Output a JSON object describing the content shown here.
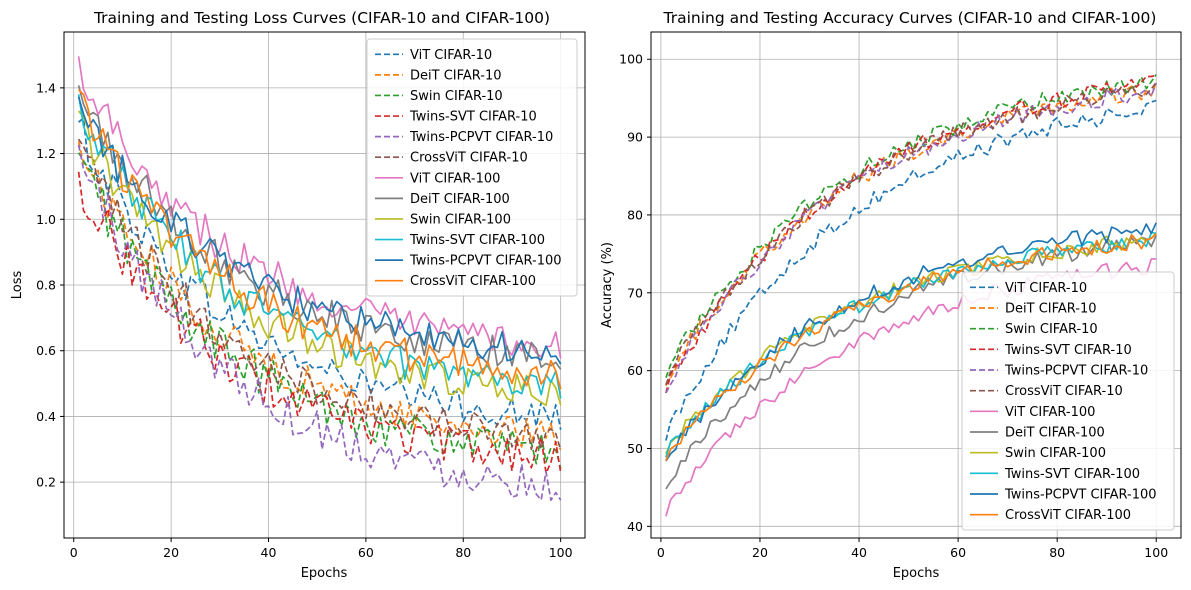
{
  "chart_data": [
    {
      "type": "line",
      "title": "Training and Testing Loss Curves (CIFAR-10 and CIFAR-100)",
      "xlabel": "Epochs",
      "ylabel": "Loss",
      "xlim": [
        -2,
        105
      ],
      "ylim": [
        0.03,
        1.57
      ],
      "xticks": [
        0,
        20,
        40,
        60,
        80,
        100
      ],
      "yticks": [
        0.2,
        0.4,
        0.6,
        0.8,
        1.0,
        1.2,
        1.4
      ],
      "xtick_labels": [
        "0",
        "20",
        "40",
        "60",
        "80",
        "100"
      ],
      "ytick_labels": [
        "0.2",
        "0.4",
        "0.6",
        "0.8",
        "1.0",
        "1.2",
        "1.4"
      ],
      "grid": true,
      "legend_position": "upper-right",
      "epochs": {
        "start": 1,
        "end": 100
      },
      "series": [
        {
          "name": "ViT CIFAR-10",
          "color": "#1f77b4",
          "dashed": true,
          "start": 1.28,
          "end": 0.36,
          "noise": 0.05
        },
        {
          "name": "DeiT CIFAR-10",
          "color": "#ff7f0e",
          "dashed": true,
          "start": 1.22,
          "end": 0.3,
          "noise": 0.05
        },
        {
          "name": "Swin CIFAR-10",
          "color": "#2ca02c",
          "dashed": true,
          "start": 1.18,
          "end": 0.25,
          "noise": 0.06
        },
        {
          "name": "Twins-SVT CIFAR-10",
          "color": "#d62728",
          "dashed": true,
          "start": 1.12,
          "end": 0.24,
          "noise": 0.06
        },
        {
          "name": "Twins-PCPVT CIFAR-10",
          "color": "#9467bd",
          "dashed": true,
          "start": 1.2,
          "end": 0.15,
          "noise": 0.06
        },
        {
          "name": "CrossViT CIFAR-10",
          "color": "#8c564b",
          "dashed": true,
          "start": 1.22,
          "end": 0.3,
          "noise": 0.05
        },
        {
          "name": "ViT CIFAR-100",
          "color": "#e377c2",
          "dashed": false,
          "start": 1.47,
          "end": 0.58,
          "noise": 0.05
        },
        {
          "name": "DeiT CIFAR-100",
          "color": "#7f7f7f",
          "dashed": false,
          "start": 1.38,
          "end": 0.55,
          "noise": 0.05
        },
        {
          "name": "Swin CIFAR-100",
          "color": "#bcbd22",
          "dashed": false,
          "start": 1.3,
          "end": 0.44,
          "noise": 0.05
        },
        {
          "name": "Twins-SVT CIFAR-100",
          "color": "#17becf",
          "dashed": false,
          "start": 1.35,
          "end": 0.46,
          "noise": 0.05
        },
        {
          "name": "Twins-PCPVT CIFAR-100",
          "color": "#1f77b4",
          "dashed": false,
          "start": 1.34,
          "end": 0.57,
          "noise": 0.05
        },
        {
          "name": "CrossViT CIFAR-100",
          "color": "#ff7f0e",
          "dashed": false,
          "start": 1.36,
          "end": 0.49,
          "noise": 0.05
        }
      ]
    },
    {
      "type": "line",
      "title": "Training and Testing Accuracy Curves (CIFAR-10 and CIFAR-100)",
      "xlabel": "Epochs",
      "ylabel": "Accuracy (%)",
      "xlim": [
        -2,
        105
      ],
      "ylim": [
        38.5,
        103.5
      ],
      "xticks": [
        0,
        20,
        40,
        60,
        80,
        100
      ],
      "yticks": [
        40,
        50,
        60,
        70,
        80,
        90,
        100
      ],
      "xtick_labels": [
        "0",
        "20",
        "40",
        "60",
        "80",
        "100"
      ],
      "ytick_labels": [
        "40",
        "50",
        "60",
        "70",
        "80",
        "90",
        "100"
      ],
      "grid": true,
      "legend_position": "lower-right",
      "epochs": {
        "start": 1,
        "end": 100
      },
      "series": [
        {
          "name": "ViT CIFAR-10",
          "color": "#1f77b4",
          "dashed": true,
          "start": 52,
          "end": 97,
          "noise": 1.0
        },
        {
          "name": "DeiT CIFAR-10",
          "color": "#ff7f0e",
          "dashed": true,
          "start": 59,
          "end": 99,
          "noise": 1.0
        },
        {
          "name": "Swin CIFAR-10",
          "color": "#2ca02c",
          "dashed": true,
          "start": 60,
          "end": 100,
          "noise": 1.0
        },
        {
          "name": "Twins-SVT CIFAR-10",
          "color": "#d62728",
          "dashed": true,
          "start": 58,
          "end": 100,
          "noise": 1.0
        },
        {
          "name": "Twins-PCPVT CIFAR-10",
          "color": "#9467bd",
          "dashed": true,
          "start": 58,
          "end": 99,
          "noise": 1.0
        },
        {
          "name": "CrossViT CIFAR-10",
          "color": "#8c564b",
          "dashed": true,
          "start": 59,
          "end": 99,
          "noise": 1.0
        },
        {
          "name": "ViT CIFAR-100",
          "color": "#e377c2",
          "dashed": false,
          "start": 42,
          "end": 76,
          "noise": 0.9
        },
        {
          "name": "DeiT CIFAR-100",
          "color": "#7f7f7f",
          "dashed": false,
          "start": 45.5,
          "end": 79,
          "noise": 0.9
        },
        {
          "name": "Swin CIFAR-100",
          "color": "#bcbd22",
          "dashed": false,
          "start": 50,
          "end": 79,
          "noise": 0.9
        },
        {
          "name": "Twins-SVT CIFAR-100",
          "color": "#17becf",
          "dashed": false,
          "start": 49.5,
          "end": 79,
          "noise": 0.9
        },
        {
          "name": "Twins-PCPVT CIFAR-100",
          "color": "#1f77b4",
          "dashed": false,
          "start": 49,
          "end": 80.5,
          "noise": 0.9
        },
        {
          "name": "CrossViT CIFAR-100",
          "color": "#ff7f0e",
          "dashed": false,
          "start": 49,
          "end": 79,
          "noise": 0.9
        }
      ]
    }
  ]
}
